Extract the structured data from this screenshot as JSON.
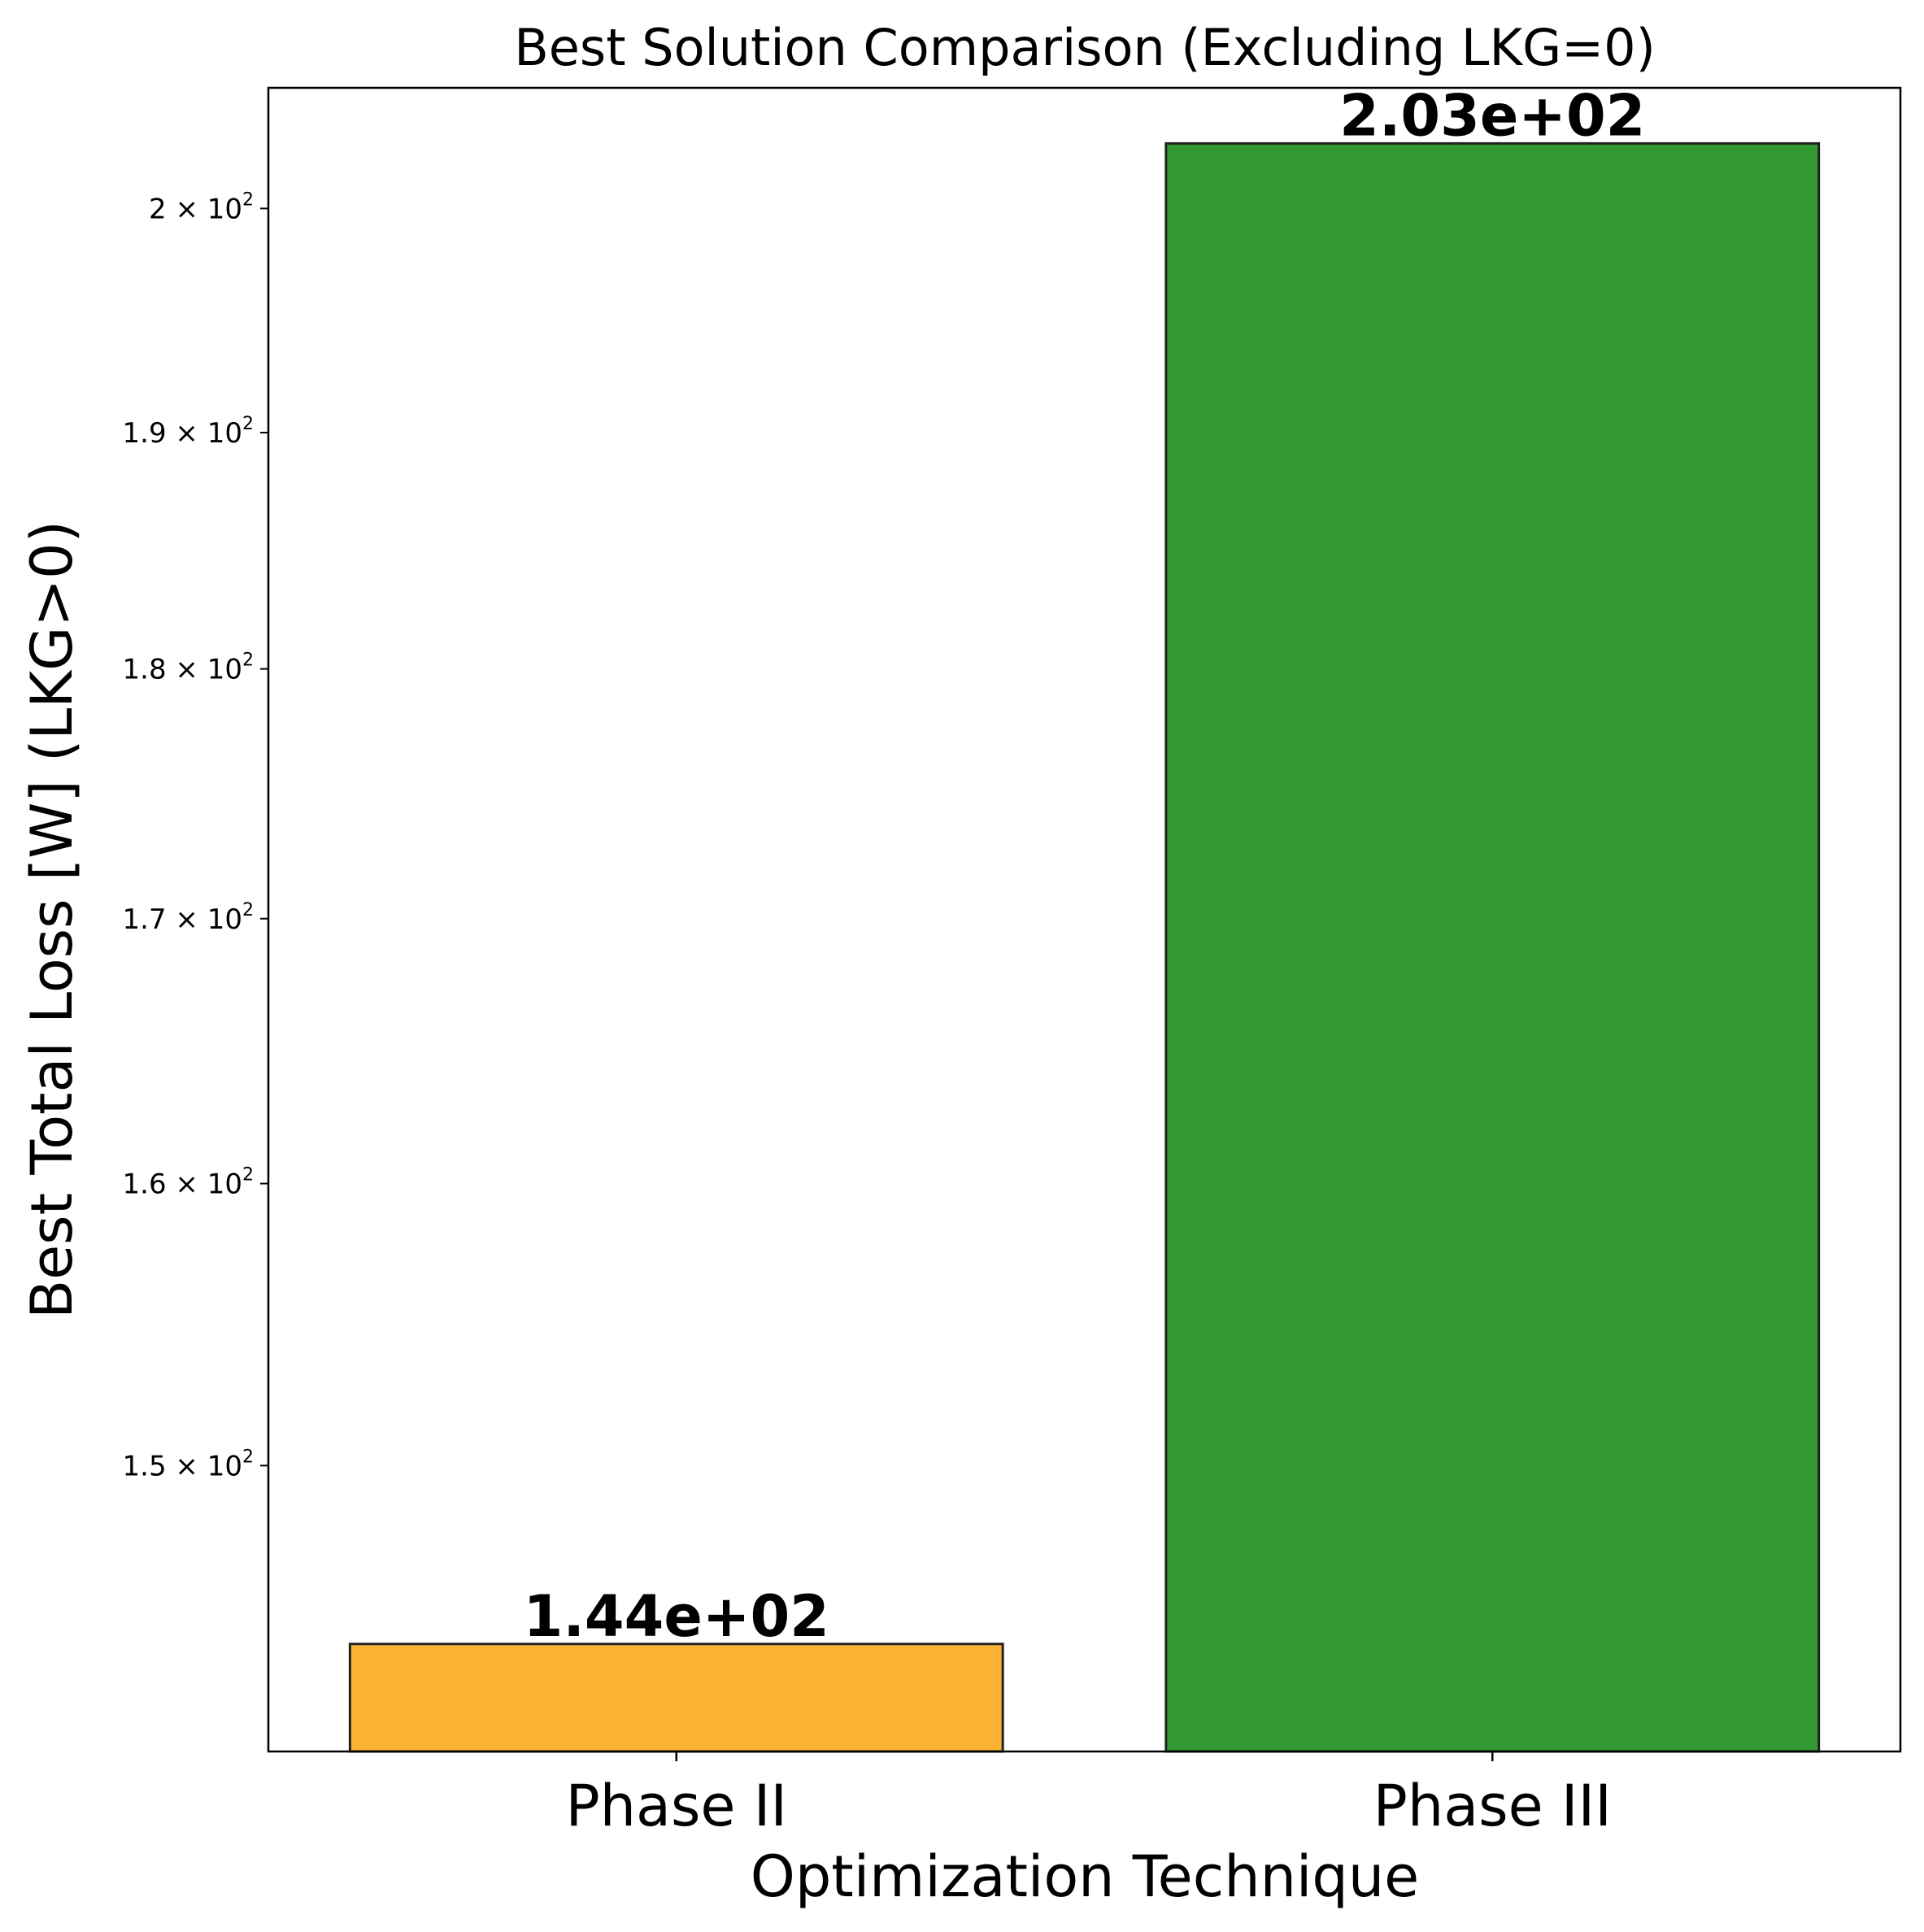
{
  "chart_data": {
    "type": "bar",
    "title": "Best Solution Comparison (Excluding LKG=0)",
    "xlabel": "Optimization Technique",
    "ylabel": "Best Total Loss [W] (LKG>0)",
    "yscale": "log",
    "ylim": [
      140.5,
      205.6
    ],
    "categories": [
      "Phase II",
      "Phase III"
    ],
    "values": [
      144,
      203
    ],
    "data_labels": [
      "1.44e+02",
      "2.03e+02"
    ],
    "colors": [
      "#fbb232",
      "#339933"
    ],
    "edge_color": "#222222",
    "yticks": [
      {
        "value": 150,
        "mantissa": "1.5",
        "base": "10",
        "exp": "2"
      },
      {
        "value": 160,
        "mantissa": "1.6",
        "base": "10",
        "exp": "2"
      },
      {
        "value": 170,
        "mantissa": "1.7",
        "base": "10",
        "exp": "2"
      },
      {
        "value": 180,
        "mantissa": "1.8",
        "base": "10",
        "exp": "2"
      },
      {
        "value": 190,
        "mantissa": "1.9",
        "base": "10",
        "exp": "2"
      },
      {
        "value": 200,
        "mantissa": "2",
        "base": "10",
        "exp": "2"
      }
    ],
    "grid": false,
    "legend": "none"
  }
}
